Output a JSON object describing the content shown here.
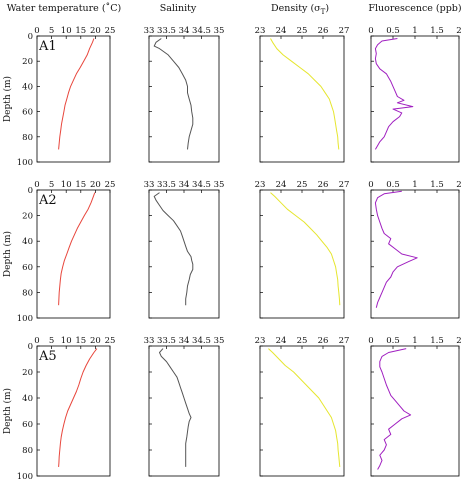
{
  "chart_data": {
    "type": "line",
    "description_layout": "3 rows (stations) x 4 columns (variables), vertical profiles vs depth",
    "y_axis": {
      "label": "Depth (m)",
      "range": [
        0,
        100
      ],
      "inverted": true,
      "ticks": [
        "0",
        "20",
        "40",
        "60",
        "80",
        "100"
      ]
    },
    "columns": [
      {
        "key": "temp",
        "title": "Water temperature (˚C)",
        "range": [
          0,
          25
        ],
        "ticks": [
          "0",
          "5",
          "10",
          "15",
          "20",
          "25"
        ],
        "color": "#e8463c"
      },
      {
        "key": "sal",
        "title": "Salinity",
        "range": [
          33,
          35
        ],
        "ticks": [
          "33",
          "33.5",
          "34",
          "34.5",
          "35"
        ],
        "color": "#555555"
      },
      {
        "key": "dens",
        "title": "Density (σ",
        "title_sub": "T",
        "title_end": ")",
        "range": [
          23,
          27
        ],
        "ticks": [
          "23",
          "24",
          "25",
          "26",
          "27"
        ],
        "color": "#e6e62e"
      },
      {
        "key": "fluo",
        "title": "Fluorescence (ppb)",
        "range": [
          0,
          2
        ],
        "ticks": [
          "0",
          "0.5",
          "1",
          "1.5",
          "2"
        ],
        "color": "#a020c0"
      }
    ],
    "stations": [
      {
        "name": "A1",
        "temp": [
          [
            19.5,
            2
          ],
          [
            19,
            5
          ],
          [
            18,
            10
          ],
          [
            17.2,
            15
          ],
          [
            16,
            20
          ],
          [
            14.8,
            25
          ],
          [
            13.5,
            30
          ],
          [
            12.5,
            35
          ],
          [
            11.5,
            40
          ],
          [
            10.8,
            45
          ],
          [
            10.2,
            50
          ],
          [
            9.6,
            55
          ],
          [
            9.2,
            60
          ],
          [
            8.8,
            65
          ],
          [
            8.4,
            70
          ],
          [
            8.1,
            75
          ],
          [
            7.8,
            80
          ],
          [
            7.6,
            85
          ],
          [
            7.4,
            90
          ]
        ],
        "sal": [
          [
            33.35,
            2
          ],
          [
            33.2,
            5
          ],
          [
            33.15,
            8
          ],
          [
            33.3,
            10
          ],
          [
            33.55,
            15
          ],
          [
            33.7,
            20
          ],
          [
            33.85,
            25
          ],
          [
            33.95,
            30
          ],
          [
            34.05,
            35
          ],
          [
            34.1,
            40
          ],
          [
            34.1,
            45
          ],
          [
            34.15,
            50
          ],
          [
            34.2,
            55
          ],
          [
            34.22,
            60
          ],
          [
            34.25,
            65
          ],
          [
            34.25,
            70
          ],
          [
            34.2,
            75
          ],
          [
            34.15,
            80
          ],
          [
            34.12,
            85
          ],
          [
            34.1,
            90
          ]
        ],
        "dens": [
          [
            23.5,
            2
          ],
          [
            23.6,
            5
          ],
          [
            23.8,
            10
          ],
          [
            24.1,
            15
          ],
          [
            24.5,
            20
          ],
          [
            24.9,
            25
          ],
          [
            25.3,
            30
          ],
          [
            25.6,
            35
          ],
          [
            25.9,
            40
          ],
          [
            26.1,
            45
          ],
          [
            26.3,
            50
          ],
          [
            26.4,
            55
          ],
          [
            26.5,
            60
          ],
          [
            26.55,
            65
          ],
          [
            26.6,
            70
          ],
          [
            26.65,
            75
          ],
          [
            26.7,
            80
          ],
          [
            26.72,
            85
          ],
          [
            26.75,
            90
          ]
        ],
        "fluo": [
          [
            0.6,
            2
          ],
          [
            0.25,
            4
          ],
          [
            0.15,
            7
          ],
          [
            0.1,
            10
          ],
          [
            0.12,
            14
          ],
          [
            0.1,
            18
          ],
          [
            0.12,
            22
          ],
          [
            0.2,
            26
          ],
          [
            0.35,
            30
          ],
          [
            0.4,
            33
          ],
          [
            0.45,
            36
          ],
          [
            0.5,
            40
          ],
          [
            0.55,
            44
          ],
          [
            0.6,
            48
          ],
          [
            0.75,
            51
          ],
          [
            0.6,
            53
          ],
          [
            0.95,
            56
          ],
          [
            0.5,
            58
          ],
          [
            0.7,
            61
          ],
          [
            0.65,
            64
          ],
          [
            0.5,
            68
          ],
          [
            0.4,
            72
          ],
          [
            0.35,
            76
          ],
          [
            0.3,
            80
          ],
          [
            0.2,
            84
          ],
          [
            0.15,
            87
          ],
          [
            0.1,
            90
          ]
        ]
      },
      {
        "name": "A2",
        "temp": [
          [
            19.8,
            2
          ],
          [
            19.3,
            5
          ],
          [
            18.5,
            10
          ],
          [
            17.5,
            15
          ],
          [
            16.2,
            20
          ],
          [
            15,
            25
          ],
          [
            13.8,
            30
          ],
          [
            12.8,
            35
          ],
          [
            11.8,
            40
          ],
          [
            11,
            45
          ],
          [
            10.2,
            50
          ],
          [
            9.4,
            55
          ],
          [
            8.8,
            60
          ],
          [
            8.3,
            65
          ],
          [
            8,
            70
          ],
          [
            7.8,
            75
          ],
          [
            7.6,
            80
          ],
          [
            7.5,
            85
          ],
          [
            7.4,
            90
          ]
        ],
        "sal": [
          [
            33.3,
            2
          ],
          [
            33.15,
            5
          ],
          [
            33.2,
            8
          ],
          [
            33.3,
            12
          ],
          [
            33.4,
            16
          ],
          [
            33.55,
            20
          ],
          [
            33.7,
            24
          ],
          [
            33.8,
            28
          ],
          [
            33.9,
            32
          ],
          [
            33.95,
            36
          ],
          [
            34,
            40
          ],
          [
            34.05,
            44
          ],
          [
            34.1,
            48
          ],
          [
            34.2,
            52
          ],
          [
            34.22,
            55
          ],
          [
            34.25,
            58
          ],
          [
            34.25,
            62
          ],
          [
            34.18,
            66
          ],
          [
            34.15,
            70
          ],
          [
            34.1,
            75
          ],
          [
            34.08,
            80
          ],
          [
            34.05,
            85
          ],
          [
            34.05,
            90
          ]
        ],
        "dens": [
          [
            23.5,
            2
          ],
          [
            23.7,
            5
          ],
          [
            24,
            10
          ],
          [
            24.3,
            15
          ],
          [
            24.7,
            20
          ],
          [
            25.1,
            25
          ],
          [
            25.4,
            30
          ],
          [
            25.7,
            35
          ],
          [
            25.95,
            40
          ],
          [
            26.2,
            45
          ],
          [
            26.4,
            50
          ],
          [
            26.5,
            55
          ],
          [
            26.6,
            60
          ],
          [
            26.65,
            65
          ],
          [
            26.7,
            70
          ],
          [
            26.72,
            75
          ],
          [
            26.75,
            80
          ],
          [
            26.78,
            85
          ],
          [
            26.8,
            90
          ]
        ],
        "fluo": [
          [
            0.7,
            1
          ],
          [
            0.3,
            3
          ],
          [
            0.15,
            6
          ],
          [
            0.1,
            10
          ],
          [
            0.12,
            15
          ],
          [
            0.15,
            20
          ],
          [
            0.2,
            25
          ],
          [
            0.25,
            30
          ],
          [
            0.3,
            34
          ],
          [
            0.45,
            38
          ],
          [
            0.4,
            42
          ],
          [
            0.55,
            46
          ],
          [
            0.7,
            50
          ],
          [
            1.05,
            53
          ],
          [
            0.85,
            56
          ],
          [
            0.6,
            60
          ],
          [
            0.5,
            64
          ],
          [
            0.45,
            68
          ],
          [
            0.35,
            72
          ],
          [
            0.3,
            76
          ],
          [
            0.25,
            80
          ],
          [
            0.2,
            84
          ],
          [
            0.15,
            88
          ],
          [
            0.12,
            92
          ]
        ]
      },
      {
        "name": "A5",
        "temp": [
          [
            20.5,
            2
          ],
          [
            19.5,
            5
          ],
          [
            18,
            10
          ],
          [
            16.8,
            15
          ],
          [
            15.8,
            20
          ],
          [
            15,
            25
          ],
          [
            14.3,
            30
          ],
          [
            13.5,
            35
          ],
          [
            12.5,
            40
          ],
          [
            11.5,
            45
          ],
          [
            10.5,
            50
          ],
          [
            9.8,
            55
          ],
          [
            9.2,
            60
          ],
          [
            8.7,
            65
          ],
          [
            8.3,
            70
          ],
          [
            8,
            75
          ],
          [
            7.8,
            80
          ],
          [
            7.6,
            85
          ],
          [
            7.5,
            90
          ],
          [
            7.4,
            93
          ]
        ],
        "sal": [
          [
            33.4,
            2
          ],
          [
            33.3,
            5
          ],
          [
            33.35,
            8
          ],
          [
            33.5,
            12
          ],
          [
            33.6,
            16
          ],
          [
            33.7,
            20
          ],
          [
            33.8,
            24
          ],
          [
            33.85,
            28
          ],
          [
            33.9,
            32
          ],
          [
            33.95,
            36
          ],
          [
            34,
            40
          ],
          [
            34.05,
            44
          ],
          [
            34.1,
            48
          ],
          [
            34.15,
            52
          ],
          [
            34.2,
            55
          ],
          [
            34.15,
            58
          ],
          [
            34.12,
            62
          ],
          [
            34.1,
            66
          ],
          [
            34.08,
            70
          ],
          [
            34.05,
            75
          ],
          [
            34.05,
            80
          ],
          [
            34.05,
            85
          ],
          [
            34.05,
            90
          ],
          [
            34.05,
            93
          ]
        ],
        "dens": [
          [
            23.4,
            2
          ],
          [
            23.6,
            5
          ],
          [
            23.9,
            10
          ],
          [
            24.2,
            15
          ],
          [
            24.6,
            20
          ],
          [
            24.9,
            25
          ],
          [
            25.2,
            30
          ],
          [
            25.5,
            35
          ],
          [
            25.8,
            40
          ],
          [
            26,
            45
          ],
          [
            26.2,
            50
          ],
          [
            26.4,
            55
          ],
          [
            26.5,
            60
          ],
          [
            26.6,
            65
          ],
          [
            26.65,
            70
          ],
          [
            26.7,
            75
          ],
          [
            26.72,
            80
          ],
          [
            26.75,
            85
          ],
          [
            26.78,
            90
          ],
          [
            26.8,
            93
          ]
        ],
        "fluo": [
          [
            0.8,
            2
          ],
          [
            0.4,
            5
          ],
          [
            0.25,
            8
          ],
          [
            0.2,
            12
          ],
          [
            0.2,
            16
          ],
          [
            0.25,
            20
          ],
          [
            0.3,
            25
          ],
          [
            0.35,
            30
          ],
          [
            0.4,
            34
          ],
          [
            0.45,
            38
          ],
          [
            0.55,
            42
          ],
          [
            0.65,
            46
          ],
          [
            0.75,
            50
          ],
          [
            0.9,
            53
          ],
          [
            0.7,
            56
          ],
          [
            0.55,
            60
          ],
          [
            0.4,
            64
          ],
          [
            0.45,
            68
          ],
          [
            0.3,
            72
          ],
          [
            0.35,
            76
          ],
          [
            0.3,
            80
          ],
          [
            0.2,
            84
          ],
          [
            0.25,
            88
          ],
          [
            0.2,
            92
          ],
          [
            0.15,
            95
          ]
        ]
      }
    ]
  }
}
